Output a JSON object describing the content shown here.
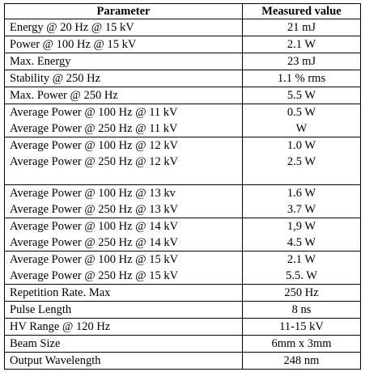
{
  "table": {
    "headers": {
      "parameter": "Parameter",
      "measured": "Measured value"
    },
    "rows": [
      {
        "params": [
          "Energy @ 20 Hz @ 15 kV"
        ],
        "values": [
          "21 mJ"
        ]
      },
      {
        "params": [
          "Power @ 100 Hz @ 15 kV"
        ],
        "values": [
          "2.1 W"
        ]
      },
      {
        "params": [
          "Max. Energy"
        ],
        "values": [
          "23 mJ"
        ]
      },
      {
        "params": [
          "Stability @ 250 Hz"
        ],
        "values": [
          "1.1 % rms"
        ]
      },
      {
        "params": [
          "Max. Power @ 250 Hz"
        ],
        "values": [
          "5.5 W"
        ]
      },
      {
        "params": [
          "Average Power @ 100 Hz @ 11 kV",
          "Average Power @ 250 Hz @ 11 kV"
        ],
        "values": [
          "0.5 W",
          "W"
        ]
      },
      {
        "params": [
          "Average Power @ 100 Hz @ 12 kV",
          "Average Power @ 250 Hz @ 12 kV"
        ],
        "values": [
          "1.0 W",
          "2.5 W"
        ],
        "extra_gap": true
      },
      {
        "params": [
          "Average Power @ 100 Hz @ 13 kv",
          "Average Power @ 250 Hz @ 13 kV"
        ],
        "values": [
          "1.6 W",
          "3.7 W"
        ]
      },
      {
        "params": [
          "Average Power @ 100 Hz @ 14 kV",
          "Average Power @ 250 Hz @ 14 kV"
        ],
        "values": [
          "1,9 W",
          "4.5 W"
        ]
      },
      {
        "params": [
          "Average Power @ 100 Hz @ 15 kV",
          "Average Power @ 250 Hz @ 15 kV"
        ],
        "values": [
          "2.1 W",
          "5.5. W"
        ]
      },
      {
        "params": [
          "Repetition Rate. Max"
        ],
        "values": [
          "250 Hz"
        ]
      },
      {
        "params": [
          "Pulse Length"
        ],
        "values": [
          "8 ns"
        ]
      },
      {
        "params": [
          "HV Range @ 120 Hz"
        ],
        "values": [
          "11-15 kV"
        ]
      },
      {
        "params": [
          "Beam Size"
        ],
        "values": [
          "6mm x 3mm"
        ]
      },
      {
        "params": [
          "Output Wavelength"
        ],
        "values": [
          "248 nm"
        ]
      }
    ]
  }
}
